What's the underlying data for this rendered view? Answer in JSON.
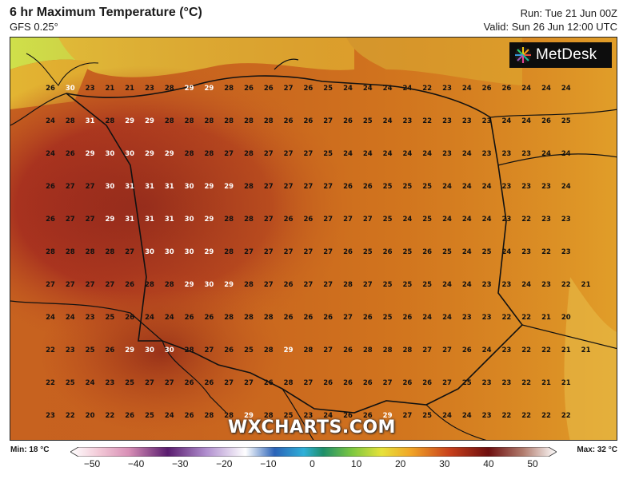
{
  "header": {
    "title": "6 hr Maximum Temperature (°C)",
    "model": "GFS 0.25°",
    "run": "Run: Tue 21 Jun 00Z",
    "valid": "Valid: Sun 26 Jun 12:00 UTC"
  },
  "logo": {
    "text": "MetDesk",
    "icon": "globe-icon"
  },
  "watermark": "WXCHARTS.COM",
  "legend": {
    "min_label": "Min: 18 °C",
    "max_label": "Max: 32 °C",
    "ticks": [
      "−50",
      "−40",
      "−30",
      "−20",
      "−10",
      "0",
      "10",
      "20",
      "30",
      "40",
      "50"
    ]
  },
  "grid_values": [
    [
      "26",
      "30",
      "23",
      "21",
      "21",
      "23",
      "28",
      "29",
      "29",
      "28",
      "26",
      "26",
      "27",
      "26",
      "25",
      "24",
      "24",
      "24",
      "24",
      "22",
      "23",
      "24",
      "26",
      "26",
      "24",
      "24",
      "24"
    ],
    [
      "24",
      "28",
      "31",
      "28",
      "29",
      "29",
      "28",
      "28",
      "28",
      "28",
      "28",
      "28",
      "26",
      "26",
      "27",
      "26",
      "25",
      "24",
      "23",
      "22",
      "23",
      "23",
      "23",
      "24",
      "24",
      "26",
      "25"
    ],
    [
      "24",
      "26",
      "29",
      "30",
      "30",
      "29",
      "29",
      "28",
      "28",
      "27",
      "28",
      "27",
      "27",
      "27",
      "25",
      "24",
      "24",
      "24",
      "24",
      "24",
      "23",
      "24",
      "23",
      "23",
      "23",
      "24",
      "24"
    ],
    [
      "26",
      "27",
      "27",
      "30",
      "31",
      "31",
      "31",
      "30",
      "29",
      "29",
      "28",
      "27",
      "27",
      "27",
      "27",
      "26",
      "26",
      "25",
      "25",
      "25",
      "24",
      "24",
      "24",
      "23",
      "23",
      "23",
      "24"
    ],
    [
      "26",
      "27",
      "27",
      "29",
      "31",
      "31",
      "31",
      "30",
      "29",
      "28",
      "28",
      "27",
      "26",
      "26",
      "27",
      "27",
      "27",
      "25",
      "24",
      "25",
      "24",
      "24",
      "24",
      "23",
      "22",
      "23",
      "23"
    ],
    [
      "28",
      "28",
      "28",
      "28",
      "27",
      "30",
      "30",
      "30",
      "29",
      "28",
      "27",
      "27",
      "27",
      "27",
      "27",
      "26",
      "25",
      "26",
      "25",
      "26",
      "25",
      "24",
      "25",
      "24",
      "23",
      "22",
      "23"
    ],
    [
      "27",
      "27",
      "27",
      "27",
      "26",
      "28",
      "28",
      "29",
      "30",
      "29",
      "28",
      "27",
      "26",
      "27",
      "27",
      "28",
      "27",
      "25",
      "25",
      "25",
      "24",
      "24",
      "23",
      "23",
      "24",
      "23",
      "22",
      "21"
    ],
    [
      "24",
      "24",
      "23",
      "25",
      "26",
      "24",
      "24",
      "26",
      "26",
      "28",
      "28",
      "28",
      "26",
      "26",
      "26",
      "27",
      "26",
      "25",
      "26",
      "24",
      "24",
      "23",
      "23",
      "22",
      "22",
      "21",
      "20"
    ],
    [
      "22",
      "23",
      "25",
      "26",
      "29",
      "30",
      "30",
      "28",
      "27",
      "26",
      "25",
      "28",
      "29",
      "28",
      "27",
      "26",
      "28",
      "28",
      "28",
      "27",
      "27",
      "26",
      "24",
      "23",
      "22",
      "22",
      "21",
      "21"
    ],
    [
      "22",
      "25",
      "24",
      "23",
      "25",
      "27",
      "27",
      "26",
      "26",
      "27",
      "27",
      "26",
      "28",
      "27",
      "26",
      "26",
      "26",
      "27",
      "26",
      "26",
      "27",
      "25",
      "23",
      "23",
      "22",
      "21",
      "21"
    ],
    [
      "23",
      "22",
      "20",
      "22",
      "26",
      "25",
      "24",
      "26",
      "28",
      "28",
      "29",
      "28",
      "25",
      "23",
      "24",
      "26",
      "26",
      "29",
      "27",
      "25",
      "24",
      "24",
      "23",
      "22",
      "22",
      "22",
      "22"
    ]
  ]
}
